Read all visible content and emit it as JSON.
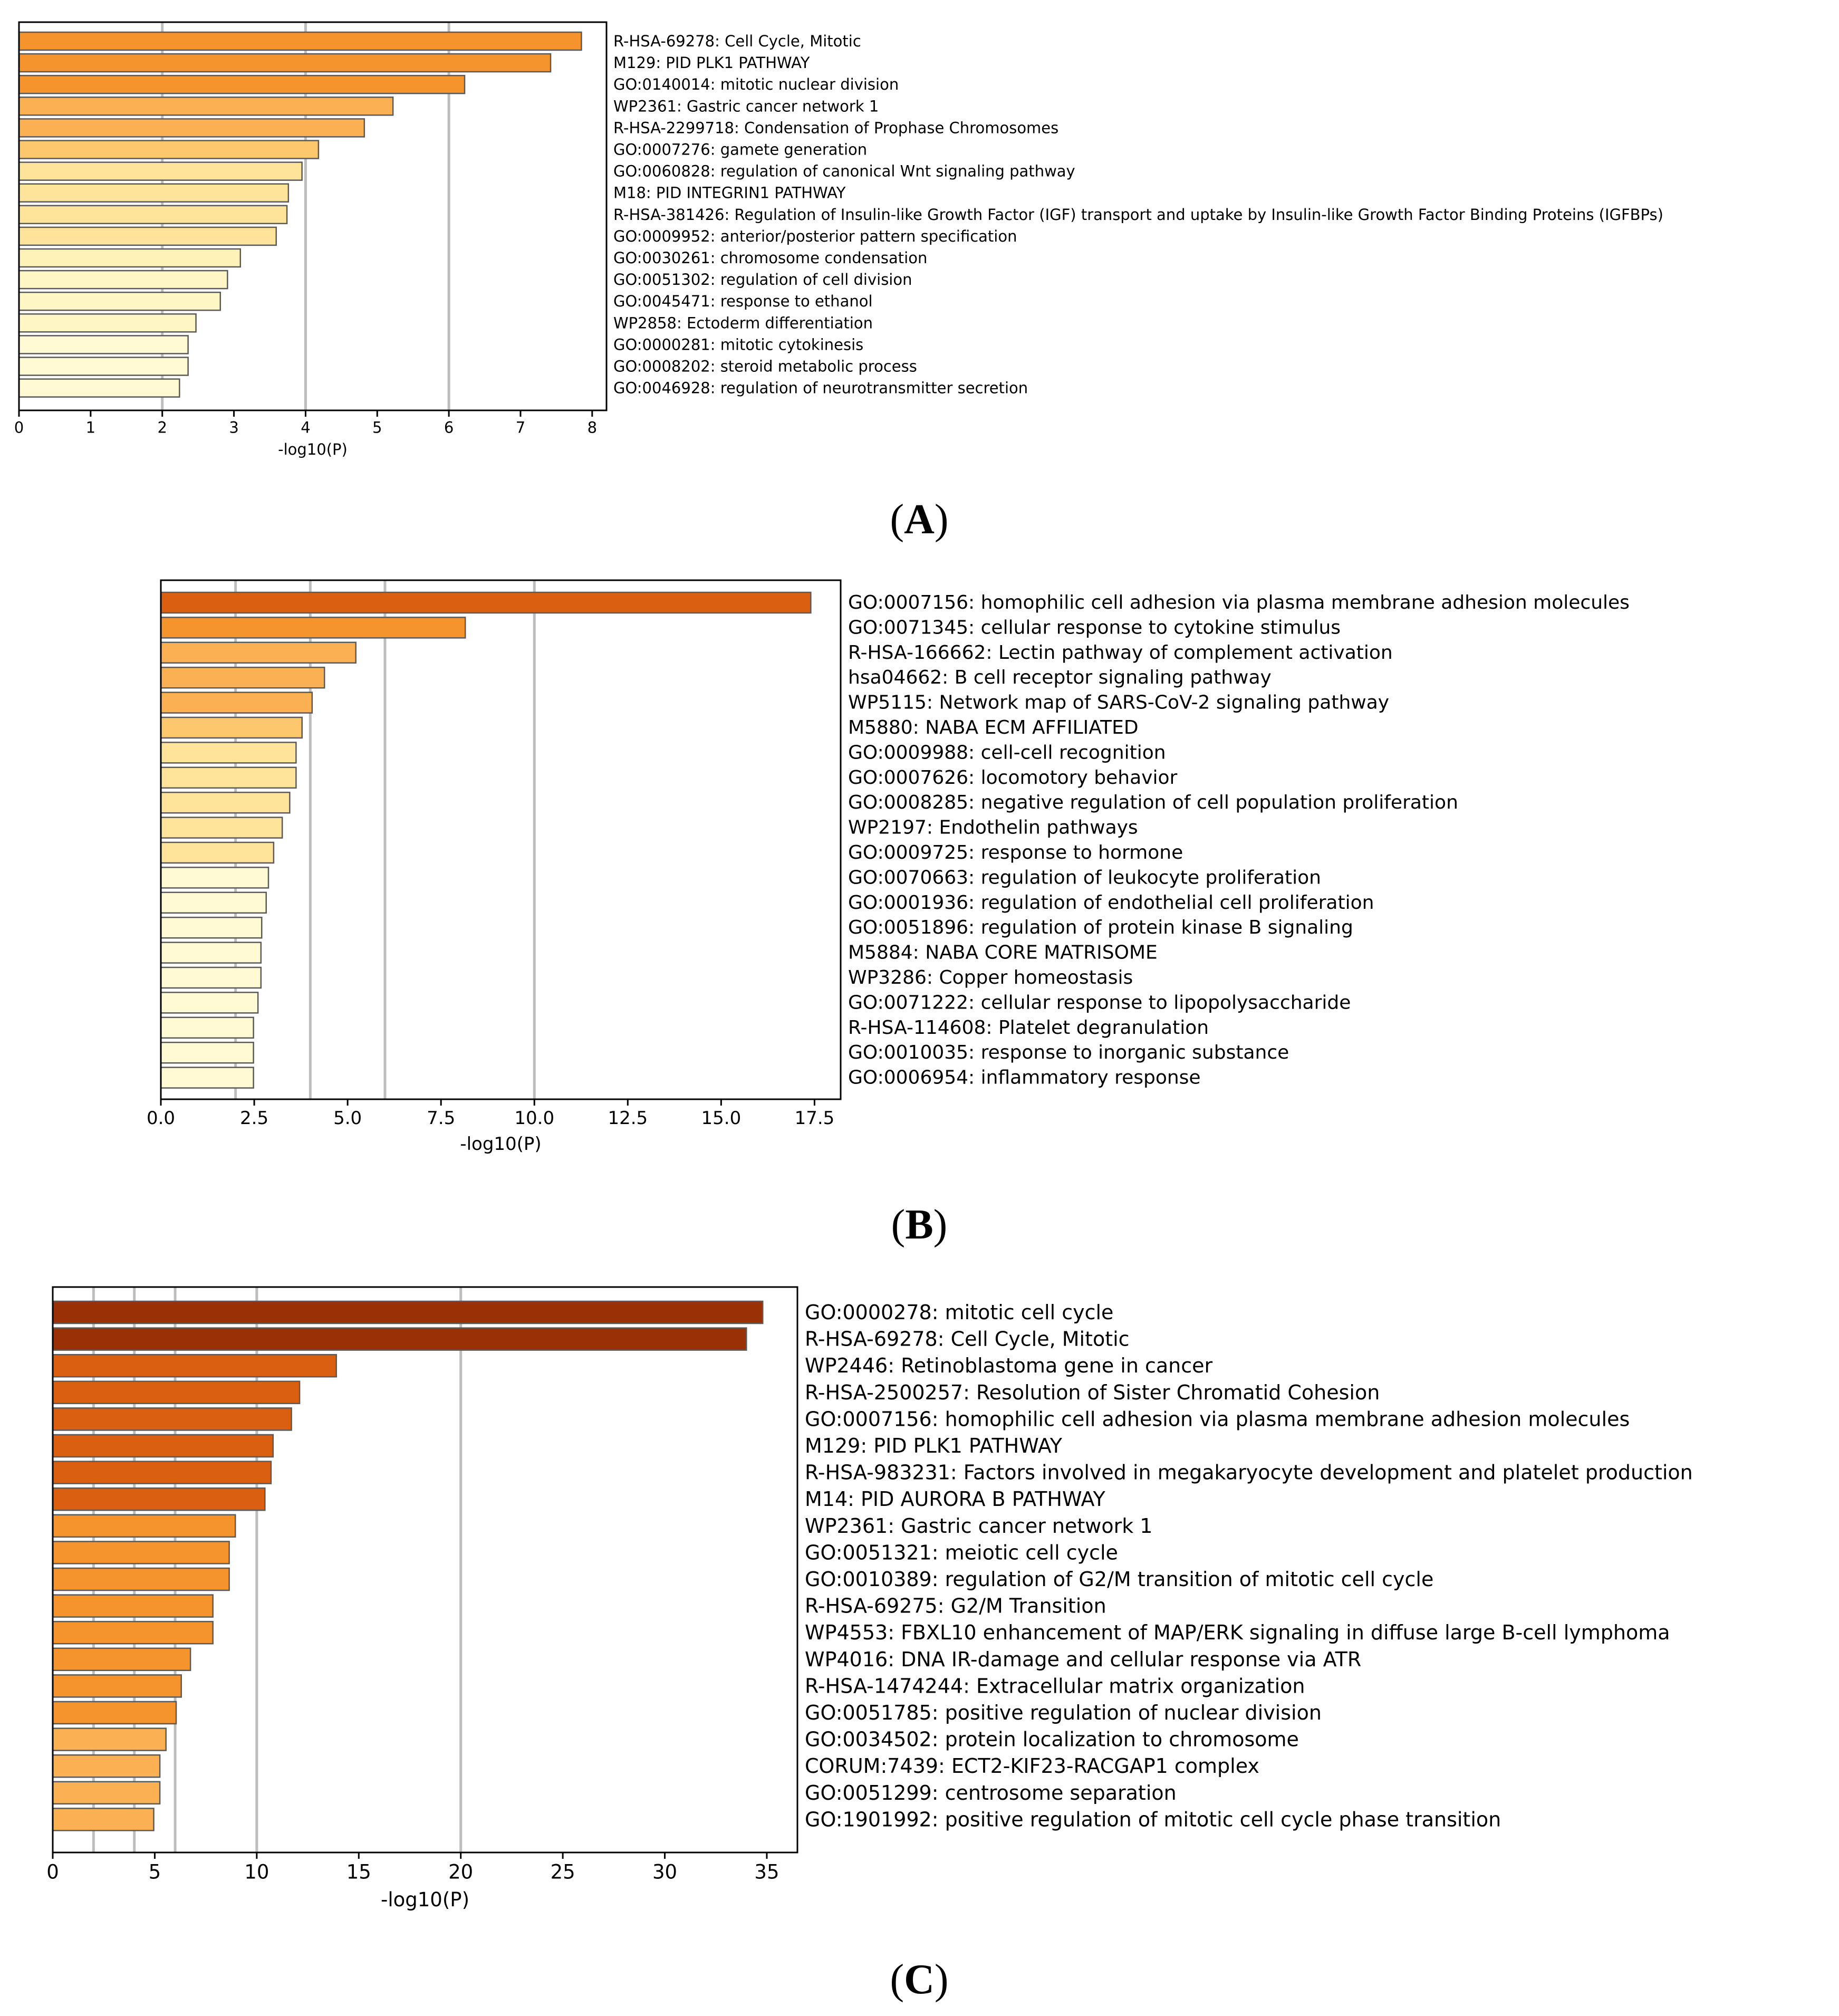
{
  "chart_data": [
    {
      "type": "bar",
      "orientation": "horizontal",
      "panel_label": "A",
      "xlabel": "-log10(P)",
      "xlim": [
        0,
        8.2
      ],
      "xticks": [
        0,
        1,
        2,
        3,
        4,
        5,
        6,
        7,
        8
      ],
      "xtick_labels": [
        "0",
        "1",
        "2",
        "3",
        "4",
        "5",
        "6",
        "7",
        "8"
      ],
      "grid_x": [
        2,
        4,
        6
      ],
      "categories": [
        "R-HSA-69278: Cell Cycle, Mitotic",
        "M129: PID PLK1 PATHWAY",
        "GO:0140014: mitotic nuclear division",
        "WP2361: Gastric cancer network 1",
        "R-HSA-2299718: Condensation of Prophase Chromosomes",
        "GO:0007276: gamete generation",
        "GO:0060828: regulation of canonical Wnt signaling pathway",
        "M18: PID INTEGRIN1 PATHWAY",
        "R-HSA-381426: Regulation of Insulin-like Growth Factor (IGF) transport and uptake by Insulin-like Growth Factor Binding Proteins (IGFBPs)",
        "GO:0009952: anterior/posterior pattern specification",
        "GO:0030261: chromosome condensation",
        "GO:0051302: regulation of cell division",
        "GO:0045471: response to ethanol",
        "WP2858: Ectoderm differentiation",
        "GO:0000281: mitotic cytokinesis",
        "GO:0008202: steroid metabolic process",
        "GO:0046928: regulation of neurotransmitter secretion"
      ],
      "values": [
        7.85,
        7.42,
        6.22,
        5.22,
        4.82,
        4.18,
        3.95,
        3.76,
        3.74,
        3.59,
        3.09,
        2.91,
        2.81,
        2.47,
        2.36,
        2.36,
        2.24
      ],
      "colors": [
        "#f5932c",
        "#f5932c",
        "#f5932c",
        "#fbb153",
        "#fbb153",
        "#fcc76d",
        "#fde49a",
        "#fde49a",
        "#fde49a",
        "#fde49a",
        "#fef2b8",
        "#fef6c4",
        "#fef6c4",
        "#fef6c4",
        "#fff9d4",
        "#fff9d4",
        "#fff9d4"
      ]
    },
    {
      "type": "bar",
      "orientation": "horizontal",
      "panel_label": "B",
      "xlabel": "-log10(P)",
      "xlim": [
        0,
        18.2
      ],
      "xticks": [
        0,
        2.5,
        5,
        7.5,
        10,
        12.5,
        15,
        17.5
      ],
      "xtick_labels": [
        "0.0",
        "2.5",
        "5.0",
        "7.5",
        "10.0",
        "12.5",
        "15.0",
        "17.5"
      ],
      "grid_x": [
        2,
        4,
        6,
        10
      ],
      "categories": [
        "GO:0007156: homophilic cell adhesion via plasma membrane adhesion molecules",
        "GO:0071345: cellular response to cytokine stimulus",
        "R-HSA-166662: Lectin pathway of complement activation",
        "hsa04662: B cell receptor signaling pathway",
        "WP5115: Network map of SARS-CoV-2 signaling pathway",
        "M5880: NABA ECM AFFILIATED",
        "GO:0009988: cell-cell recognition",
        "GO:0007626: locomotory behavior",
        "GO:0008285: negative regulation of cell population proliferation",
        "WP2197: Endothelin pathways",
        "GO:0009725: response to hormone",
        "GO:0070663: regulation of leukocyte proliferation",
        "GO:0001936: regulation of endothelial cell proliferation",
        "GO:0051896: regulation of protein kinase B signaling",
        "M5884: NABA CORE MATRISOME",
        "WP3286: Copper homeostasis",
        "GO:0071222: cellular response to lipopolysaccharide",
        "R-HSA-114608: Platelet degranulation",
        "GO:0010035: response to inorganic substance",
        "GO:0006954: inflammatory response"
      ],
      "values": [
        17.4,
        8.15,
        5.22,
        4.38,
        4.05,
        3.78,
        3.62,
        3.62,
        3.45,
        3.25,
        3.02,
        2.88,
        2.82,
        2.7,
        2.68,
        2.68,
        2.6,
        2.48,
        2.48,
        2.48
      ],
      "colors": [
        "#db5f10",
        "#f5932c",
        "#fbb153",
        "#fbb153",
        "#fbb153",
        "#fcc76d",
        "#fde49a",
        "#fde49a",
        "#fde49a",
        "#fde49a",
        "#fde49a",
        "#fff9d4",
        "#fff9d4",
        "#fff9d4",
        "#fff9d4",
        "#fff9d4",
        "#fff9d4",
        "#fff9d4",
        "#fff9d4",
        "#fff9d4"
      ]
    },
    {
      "type": "bar",
      "orientation": "horizontal",
      "panel_label": "C",
      "xlabel": "-log10(P)",
      "xlim": [
        0,
        36.5
      ],
      "xticks": [
        0,
        5,
        10,
        15,
        20,
        25,
        30,
        35
      ],
      "xtick_labels": [
        "0",
        "5",
        "10",
        "15",
        "20",
        "25",
        "30",
        "35"
      ],
      "grid_x": [
        2,
        4,
        6,
        10,
        20
      ],
      "categories": [
        "GO:0000278: mitotic cell cycle",
        "R-HSA-69278: Cell Cycle, Mitotic",
        "WP2446: Retinoblastoma gene in cancer",
        "R-HSA-2500257: Resolution of Sister Chromatid Cohesion",
        "GO:0007156: homophilic cell adhesion via plasma membrane adhesion molecules",
        "M129: PID PLK1 PATHWAY",
        "R-HSA-983231: Factors involved in megakaryocyte development and platelet production",
        "M14: PID AURORA B PATHWAY",
        "WP2361: Gastric cancer network 1",
        "GO:0051321: meiotic cell cycle",
        "GO:0010389: regulation of G2/M transition of mitotic cell cycle",
        "R-HSA-69275: G2/M Transition",
        "WP4553: FBXL10 enhancement of MAP/ERK signaling in diffuse large B-cell lymphoma",
        "WP4016: DNA IR-damage and cellular response via ATR",
        "R-HSA-1474244: Extracellular matrix organization",
        "GO:0051785: positive regulation of nuclear division",
        "GO:0034502: protein localization to chromosome",
        "CORUM:7439: ECT2-KIF23-RACGAP1 complex",
        "GO:0051299: centrosome separation",
        "GO:1901992: positive regulation of mitotic cell cycle phase transition"
      ],
      "values": [
        34.8,
        34.0,
        13.9,
        12.1,
        11.7,
        10.8,
        10.7,
        10.4,
        8.95,
        8.65,
        8.65,
        7.85,
        7.85,
        6.75,
        6.3,
        6.05,
        5.55,
        5.25,
        5.25,
        4.95
      ],
      "colors": [
        "#9a3006",
        "#9a3006",
        "#db5f10",
        "#db5f10",
        "#db5f10",
        "#db5f10",
        "#db5f10",
        "#db5f10",
        "#f5932c",
        "#f5932c",
        "#f5932c",
        "#f5932c",
        "#f5932c",
        "#f5932c",
        "#f5932c",
        "#f5932c",
        "#fbb153",
        "#fbb153",
        "#fbb153",
        "#fbb153"
      ]
    }
  ]
}
